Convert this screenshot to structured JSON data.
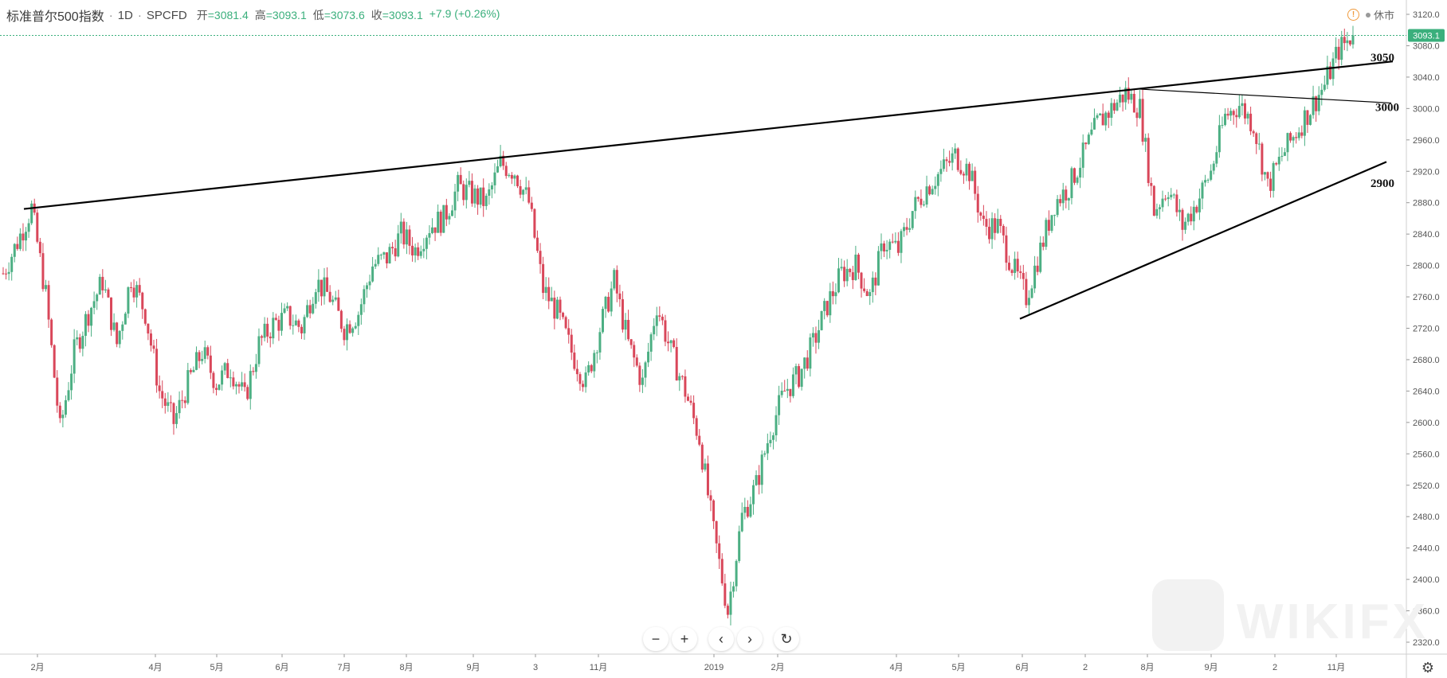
{
  "header": {
    "title": "标准普尔500指数",
    "interval": "1D",
    "source": "SPCFD",
    "open_label": "开",
    "open_value": "=3081.4",
    "high_label": "高",
    "high_value": "=3093.1",
    "low_label": "低",
    "low_value": "=3073.6",
    "close_label": "收",
    "close_value": "=3093.1",
    "change": "+7.9 (+0.26%)"
  },
  "status": {
    "warning": "!",
    "market": "休市"
  },
  "controls": {
    "zoom_out": "−",
    "zoom_in": "+",
    "scroll_left": "‹",
    "scroll_right": "›",
    "reset": "↻",
    "settings": "⚙"
  },
  "watermark": "WIKIFX",
  "colors": {
    "up": "#4caf83",
    "down": "#d9475a",
    "last_price_tag": "#3aaf7c",
    "grid_dotted": "#3aaf7c",
    "trendline": "#000000"
  },
  "chart_data": {
    "type": "candlestick",
    "title": "",
    "ylim": [
      2300,
      3130
    ],
    "y_ticks": [
      3120.0,
      3080.0,
      3040.0,
      3000.0,
      2960.0,
      2920.0,
      2880.0,
      2840.0,
      2800.0,
      2760.0,
      2720.0,
      2680.0,
      2640.0,
      2600.0,
      2560.0,
      2520.0,
      2480.0,
      2440.0,
      2400.0,
      2360.0,
      2320.0
    ],
    "x_ticks": [
      "2月",
      "4月",
      "5月",
      "6月",
      "7月",
      "8月",
      "9月",
      "3",
      "11月",
      "2019",
      "2月",
      "4月",
      "5月",
      "6月",
      "2",
      "8月",
      "9月",
      "2",
      "11月"
    ],
    "last_price": "3093.1",
    "series": [
      {
        "x": "2018-01",
        "y": 2790
      },
      {
        "x": "2018-01",
        "y": 2830
      },
      {
        "x": "2018-01",
        "y": 2873
      },
      {
        "x": "2018-02",
        "y": 2762
      },
      {
        "x": "2018-02",
        "y": 2590
      },
      {
        "x": "2018-02",
        "y": 2690
      },
      {
        "x": "2018-02",
        "y": 2740
      },
      {
        "x": "2018-03",
        "y": 2780
      },
      {
        "x": "2018-03",
        "y": 2700
      },
      {
        "x": "2018-03",
        "y": 2785
      },
      {
        "x": "2018-03",
        "y": 2740
      },
      {
        "x": "2018-03",
        "y": 2640
      },
      {
        "x": "2018-04",
        "y": 2600
      },
      {
        "x": "2018-04",
        "y": 2650
      },
      {
        "x": "2018-04",
        "y": 2690
      },
      {
        "x": "2018-04",
        "y": 2650
      },
      {
        "x": "2018-04",
        "y": 2670
      },
      {
        "x": "2018-05",
        "y": 2630
      },
      {
        "x": "2018-05",
        "y": 2700
      },
      {
        "x": "2018-05",
        "y": 2725
      },
      {
        "x": "2018-05",
        "y": 2735
      },
      {
        "x": "2018-06",
        "y": 2720
      },
      {
        "x": "2018-06",
        "y": 2780
      },
      {
        "x": "2018-06",
        "y": 2760
      },
      {
        "x": "2018-06",
        "y": 2720
      },
      {
        "x": "2018-07",
        "y": 2740
      },
      {
        "x": "2018-07",
        "y": 2800
      },
      {
        "x": "2018-07",
        "y": 2810
      },
      {
        "x": "2018-07",
        "y": 2840
      },
      {
        "x": "2018-08",
        "y": 2820
      },
      {
        "x": "2018-08",
        "y": 2850
      },
      {
        "x": "2018-08",
        "y": 2860
      },
      {
        "x": "2018-08",
        "y": 2900
      },
      {
        "x": "2018-09",
        "y": 2890
      },
      {
        "x": "2018-09",
        "y": 2880
      },
      {
        "x": "2018-09",
        "y": 2930
      },
      {
        "x": "2018-09",
        "y": 2920
      },
      {
        "x": "2018-10",
        "y": 2880
      },
      {
        "x": "2018-10",
        "y": 2770
      },
      {
        "x": "2018-10",
        "y": 2740
      },
      {
        "x": "2018-10",
        "y": 2690
      },
      {
        "x": "2018-10",
        "y": 2650
      },
      {
        "x": "2018-11",
        "y": 2720
      },
      {
        "x": "2018-11",
        "y": 2780
      },
      {
        "x": "2018-11",
        "y": 2700
      },
      {
        "x": "2018-11",
        "y": 2650
      },
      {
        "x": "2018-11",
        "y": 2750
      },
      {
        "x": "2018-12",
        "y": 2690
      },
      {
        "x": "2018-12",
        "y": 2640
      },
      {
        "x": "2018-12",
        "y": 2580
      },
      {
        "x": "2018-12",
        "y": 2460
      },
      {
        "x": "2018-12",
        "y": 2360
      },
      {
        "x": "2018-12",
        "y": 2480
      },
      {
        "x": "2019-01",
        "y": 2520
      },
      {
        "x": "2019-01",
        "y": 2590
      },
      {
        "x": "2019-01",
        "y": 2640
      },
      {
        "x": "2019-01",
        "y": 2660
      },
      {
        "x": "2019-02",
        "y": 2700
      },
      {
        "x": "2019-02",
        "y": 2750
      },
      {
        "x": "2019-02",
        "y": 2790
      },
      {
        "x": "2019-03",
        "y": 2800
      },
      {
        "x": "2019-03",
        "y": 2760
      },
      {
        "x": "2019-03",
        "y": 2830
      },
      {
        "x": "2019-03",
        "y": 2820
      },
      {
        "x": "2019-04",
        "y": 2870
      },
      {
        "x": "2019-04",
        "y": 2900
      },
      {
        "x": "2019-04",
        "y": 2920
      },
      {
        "x": "2019-04",
        "y": 2940
      },
      {
        "x": "2019-05",
        "y": 2920
      },
      {
        "x": "2019-05",
        "y": 2850
      },
      {
        "x": "2019-05",
        "y": 2850
      },
      {
        "x": "2019-05",
        "y": 2800
      },
      {
        "x": "2019-05",
        "y": 2760
      },
      {
        "x": "2019-06",
        "y": 2820
      },
      {
        "x": "2019-06",
        "y": 2880
      },
      {
        "x": "2019-06",
        "y": 2900
      },
      {
        "x": "2019-06",
        "y": 2940
      },
      {
        "x": "2019-07",
        "y": 2980
      },
      {
        "x": "2019-07",
        "y": 3000
      },
      {
        "x": "2019-07",
        "y": 3020
      },
      {
        "x": "2019-07",
        "y": 3000
      },
      {
        "x": "2019-08",
        "y": 2870
      },
      {
        "x": "2019-08",
        "y": 2900
      },
      {
        "x": "2019-08",
        "y": 2850
      },
      {
        "x": "2019-08",
        "y": 2880
      },
      {
        "x": "2019-09",
        "y": 2920
      },
      {
        "x": "2019-09",
        "y": 2990
      },
      {
        "x": "2019-09",
        "y": 3005
      },
      {
        "x": "2019-09",
        "y": 2980
      },
      {
        "x": "2019-10",
        "y": 2900
      },
      {
        "x": "2019-10",
        "y": 2940
      },
      {
        "x": "2019-10",
        "y": 2970
      },
      {
        "x": "2019-10",
        "y": 3000
      },
      {
        "x": "2019-10",
        "y": 3030
      },
      {
        "x": "2019-11",
        "y": 3075
      },
      {
        "x": "2019-11",
        "y": 3093.1
      }
    ],
    "annotations": [
      {
        "text": "3050",
        "y": 3050
      },
      {
        "text": "3000",
        "y": 3000
      },
      {
        "text": "2900",
        "y": 2900
      }
    ]
  }
}
